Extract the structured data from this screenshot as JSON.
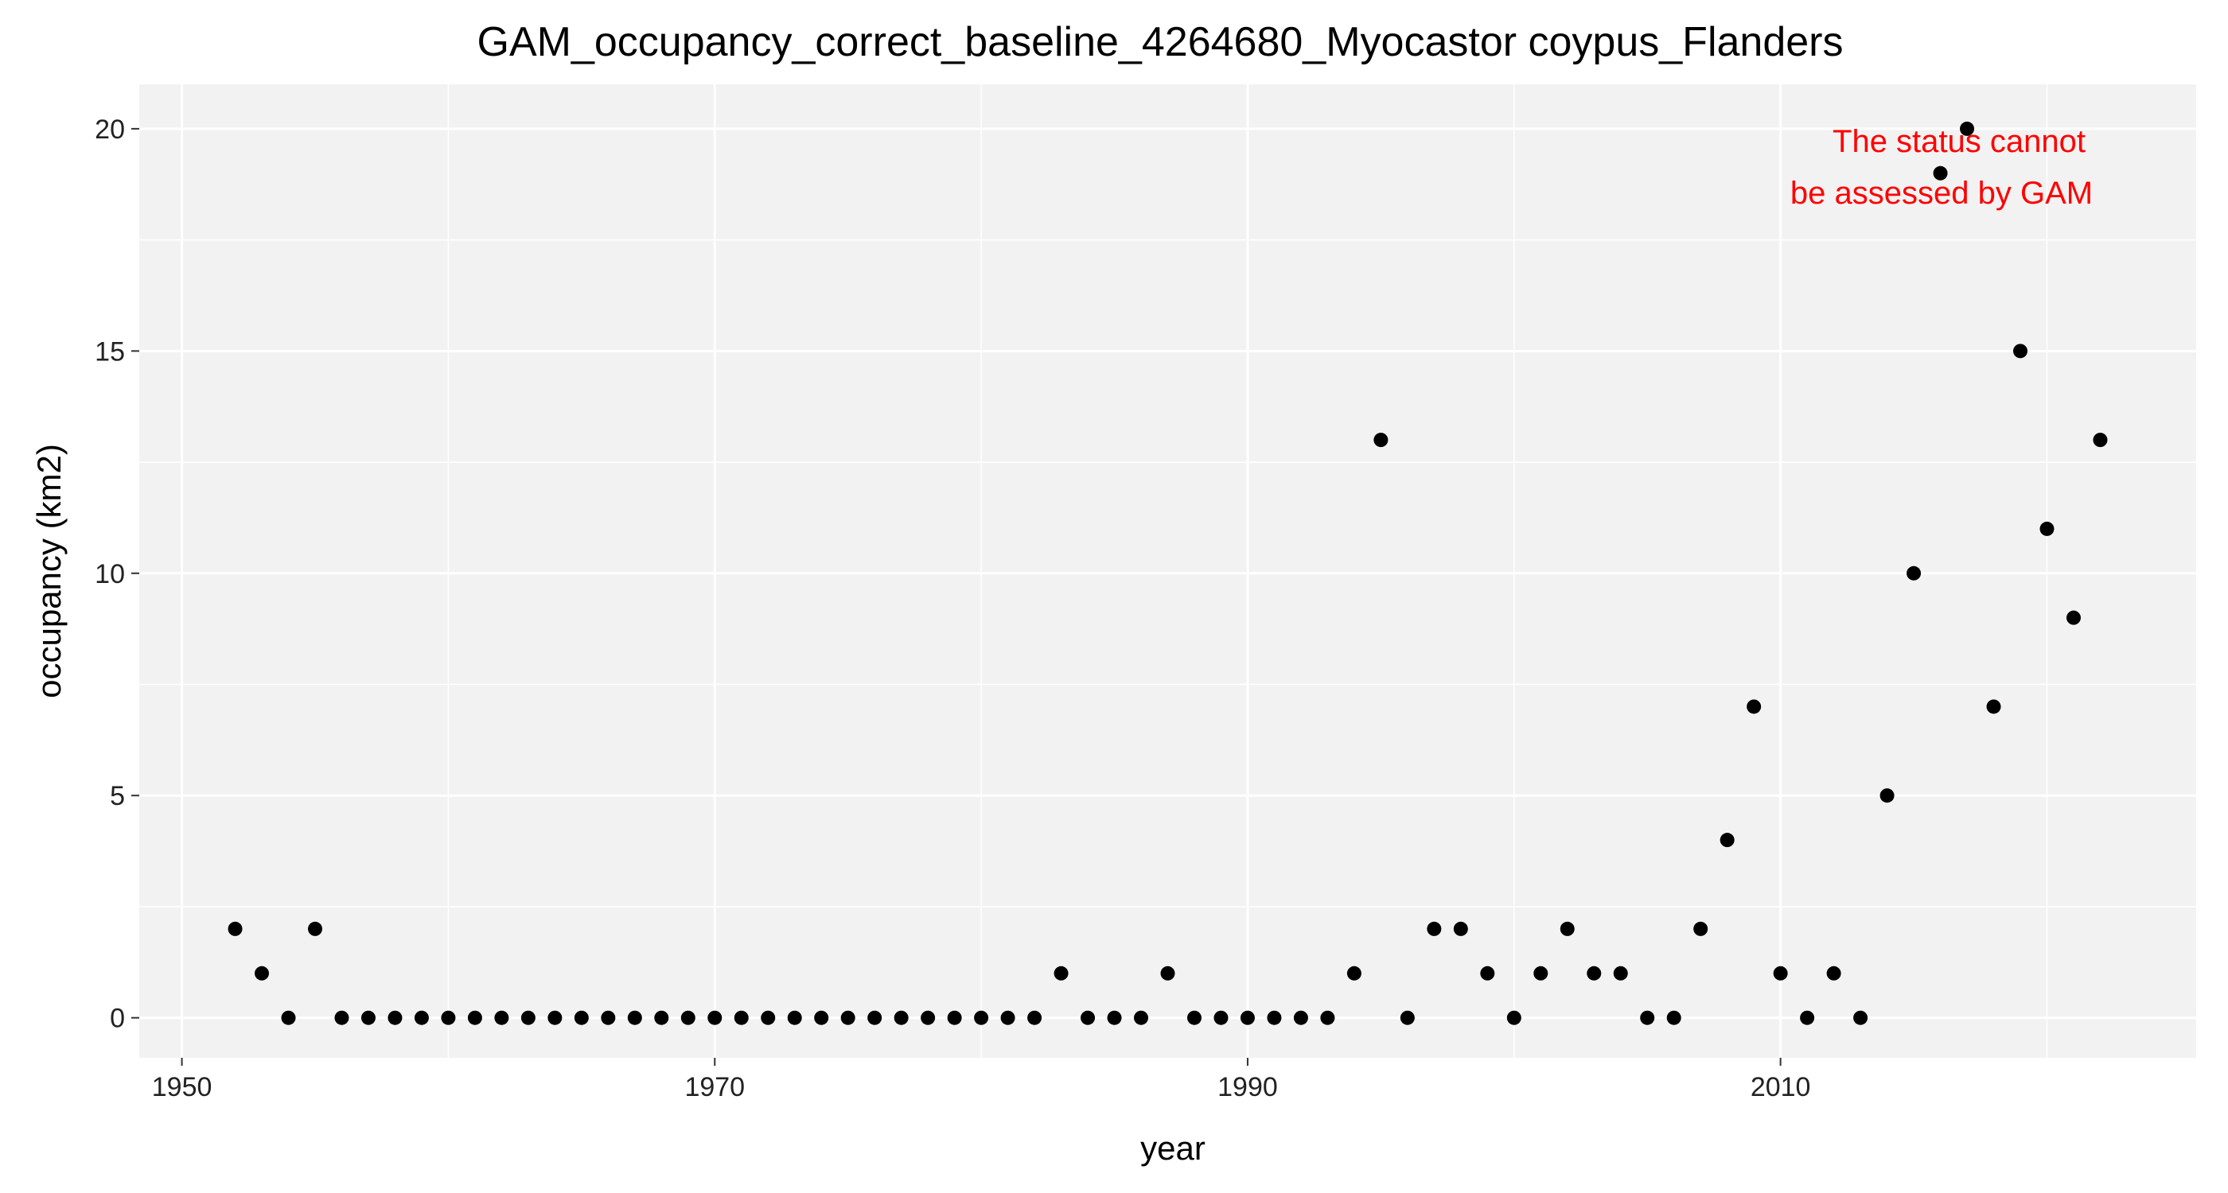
{
  "chart_data": {
    "type": "scatter",
    "title": "GAM_occupancy_correct_baseline_4264680_Myocastor coypus_Flanders",
    "xlabel": "year",
    "ylabel": "occupancy (km2)",
    "xlim": [
      1948.4,
      2025.6
    ],
    "ylim": [
      -0.9,
      21.0
    ],
    "x_ticks": [
      1950,
      1970,
      1990,
      2010
    ],
    "x_tick_labels": [
      "1950",
      "1970",
      "1990",
      "2010"
    ],
    "y_ticks": [
      0,
      5,
      10,
      15,
      20
    ],
    "y_tick_labels": [
      "0",
      "5",
      "10",
      "15",
      "20"
    ],
    "grid": true,
    "colors": {
      "panel": "#f2f2f2",
      "grid": "#ffffff",
      "point": "#000000",
      "annotation": "#ff0000",
      "tick": "#333333"
    },
    "annotation": [
      "The status cannot",
      "be assessed by GAM"
    ],
    "series": [
      {
        "name": "occupancy",
        "x": [
          1952,
          1953,
          1954,
          1955,
          1956,
          1957,
          1958,
          1959,
          1960,
          1961,
          1962,
          1963,
          1964,
          1965,
          1966,
          1967,
          1968,
          1969,
          1970,
          1971,
          1972,
          1973,
          1974,
          1975,
          1976,
          1977,
          1978,
          1979,
          1980,
          1981,
          1982,
          1983,
          1984,
          1985,
          1986,
          1987,
          1988,
          1989,
          1990,
          1991,
          1992,
          1993,
          1994,
          1995,
          1996,
          1997,
          1998,
          1999,
          2000,
          2001,
          2002,
          2003,
          2004,
          2005,
          2006,
          2007,
          2008,
          2009,
          2010,
          2011,
          2012,
          2013,
          2014,
          2015,
          2016,
          2017,
          2018,
          2019,
          2020,
          2021,
          2022
        ],
        "y": [
          2,
          1,
          0,
          2,
          0,
          0,
          0,
          0,
          0,
          0,
          0,
          0,
          0,
          0,
          0,
          0,
          0,
          0,
          0,
          0,
          0,
          0,
          0,
          0,
          0,
          0,
          0,
          0,
          0,
          0,
          0,
          1,
          0,
          0,
          0,
          1,
          0,
          0,
          0,
          0,
          0,
          0,
          1,
          13,
          0,
          2,
          2,
          1,
          0,
          1,
          2,
          1,
          1,
          0,
          0,
          2,
          4,
          7,
          1,
          0,
          1,
          0,
          5,
          10,
          19,
          20,
          7,
          15,
          11,
          9,
          13
        ]
      }
    ]
  }
}
